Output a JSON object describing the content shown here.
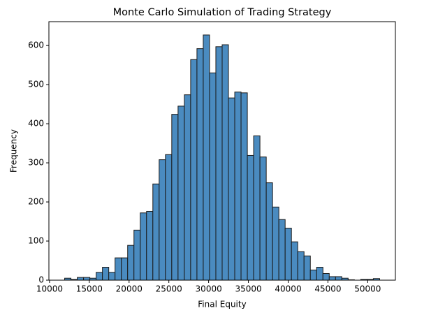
{
  "chart_data": {
    "type": "histogram",
    "title": "Monte Carlo Simulation of Trading Strategy",
    "x_label": "Final Equity",
    "y_label": "Frequency",
    "color": "#4a8bc0",
    "edge_color": "#1a1a1a",
    "bins": [
      11900,
      12692,
      13484,
      14276,
      15068,
      15860,
      16652,
      17444,
      18236,
      19028,
      19820,
      20612,
      21404,
      22196,
      22988,
      23780,
      24572,
      25364,
      26156,
      26948,
      27740,
      28532,
      29324,
      30116,
      30908,
      31700,
      32492,
      33284,
      34076,
      34868,
      35660,
      36452,
      37244,
      38036,
      38828,
      39620,
      40412,
      41204,
      41996,
      42788,
      43580,
      44372,
      45164,
      45956,
      46748,
      47540,
      48332,
      49124,
      49916,
      50708,
      51500
    ],
    "values": [
      5,
      2,
      7,
      7,
      5,
      20,
      33,
      20,
      57,
      57,
      89,
      128,
      172,
      176,
      246,
      308,
      321,
      424,
      445,
      474,
      564,
      592,
      627,
      530,
      597,
      602,
      466,
      481,
      479,
      319,
      369,
      315,
      249,
      187,
      155,
      133,
      98,
      73,
      62,
      26,
      33,
      17,
      9,
      9,
      5,
      1,
      0,
      2,
      2,
      4
    ],
    "xlim": [
      9920,
      53480
    ],
    "ylim": [
      0,
      661
    ],
    "xticks": [
      10000,
      15000,
      20000,
      25000,
      30000,
      35000,
      40000,
      45000,
      50000
    ],
    "yticks": [
      0,
      100,
      200,
      300,
      400,
      500,
      600
    ],
    "grid": false
  }
}
